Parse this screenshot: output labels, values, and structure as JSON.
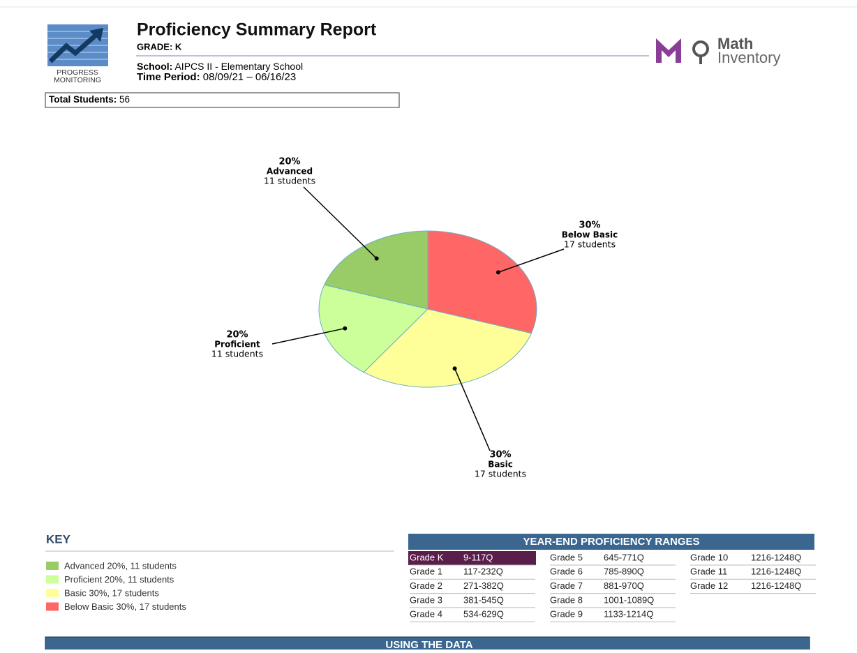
{
  "header": {
    "title": "Proficiency Summary Report",
    "grade": "GRADE: K",
    "school_label": "School:",
    "school": "AIPCS II - Elementary School",
    "period_label": "Time Period:",
    "period": "08/09/21 – 06/16/23",
    "badge": "PROGRESS MONITORING",
    "brand_top": "Math",
    "brand_bottom": "Inventory"
  },
  "total": {
    "label": "Total Students:",
    "value": 56
  },
  "chart_data": {
    "type": "pie",
    "categories": [
      "Advanced",
      "Proficient",
      "Basic",
      "Below Basic"
    ],
    "values": [
      20,
      20,
      30,
      30
    ],
    "value_labels": [
      "20%",
      "20%",
      "30%",
      "30%"
    ],
    "count_labels": [
      "11 students",
      "11 students",
      "17 students",
      "17 students"
    ],
    "colors": [
      "#99cc66",
      "#ccff99",
      "#ffff99",
      "#ff6666"
    ]
  },
  "key": {
    "title": "KEY",
    "items": [
      "Advanced 20%, 11 students",
      "Proficient 20%, 11 students",
      "Basic 30%, 17 students",
      "Below Basic 30%, 17 students"
    ]
  },
  "ranges": {
    "title": "YEAR-END PROFICIENCY RANGES",
    "highlight": [
      0,
      0
    ],
    "columns": [
      [
        [
          "Grade K",
          "9-117Q"
        ],
        [
          "Grade 1",
          "117-232Q"
        ],
        [
          "Grade 2",
          "271-382Q"
        ],
        [
          "Grade 3",
          "381-545Q"
        ],
        [
          "Grade 4",
          "534-629Q"
        ]
      ],
      [
        [
          "Grade 5",
          "645-771Q"
        ],
        [
          "Grade 6",
          "785-890Q"
        ],
        [
          "Grade 7",
          "881-970Q"
        ],
        [
          "Grade 8",
          "1001-1089Q"
        ],
        [
          "Grade 9",
          "1133-1214Q"
        ]
      ],
      [
        [
          "Grade 10",
          "1216-1248Q"
        ],
        [
          "Grade 11",
          "1216-1248Q"
        ],
        [
          "Grade 12",
          "1216-1248Q"
        ]
      ]
    ]
  },
  "footer": {
    "title": "USING THE DATA"
  }
}
